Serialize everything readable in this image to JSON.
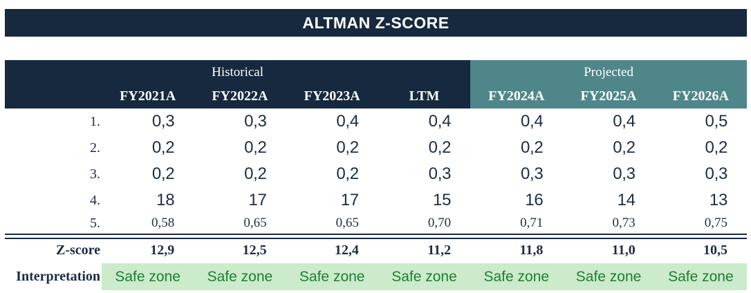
{
  "title": "ALTMAN Z-SCORE",
  "colors": {
    "navy": "#16293e",
    "teal": "#4f8689",
    "interpretation_bg": "#cbebcb",
    "interpretation_text": "#1e7d33",
    "body_text": "#1b2d42"
  },
  "table": {
    "groups": [
      {
        "label": "Historical",
        "columns": [
          "FY2021A",
          "FY2022A",
          "FY2023A",
          "LTM"
        ]
      },
      {
        "label": "Projected",
        "columns": [
          "FY2024A",
          "FY2025A",
          "FY2026A"
        ]
      }
    ],
    "rows": [
      {
        "label": "1.",
        "values": [
          "0,3",
          "0,3",
          "0,4",
          "0,4",
          "0,4",
          "0,4",
          "0,5"
        ]
      },
      {
        "label": "2.",
        "values": [
          "0,2",
          "0,2",
          "0,2",
          "0,2",
          "0,2",
          "0,2",
          "0,2"
        ]
      },
      {
        "label": "3.",
        "values": [
          "0,2",
          "0,2",
          "0,2",
          "0,3",
          "0,3",
          "0,3",
          "0,3"
        ]
      },
      {
        "label": "4.",
        "values": [
          "18",
          "17",
          "17",
          "15",
          "16",
          "14",
          "13"
        ]
      },
      {
        "label": "5.",
        "values": [
          "0,58",
          "0,65",
          "0,65",
          "0,70",
          "0,71",
          "0,73",
          "0,75"
        ]
      }
    ],
    "zscore": {
      "label": "Z-score",
      "values": [
        "12,9",
        "12,5",
        "12,4",
        "11,2",
        "11,8",
        "11,0",
        "10,5"
      ]
    },
    "interpretation": {
      "label": "Interpretation",
      "values": [
        "Safe zone",
        "Safe zone",
        "Safe zone",
        "Safe zone",
        "Safe zone",
        "Safe zone",
        "Safe zone"
      ]
    }
  }
}
